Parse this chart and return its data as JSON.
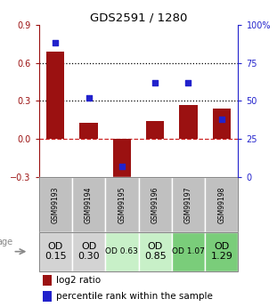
{
  "title": "GDS2591 / 1280",
  "samples": [
    "GSM99193",
    "GSM99194",
    "GSM99195",
    "GSM99196",
    "GSM99197",
    "GSM99198"
  ],
  "log2_ratio": [
    0.69,
    0.13,
    -0.35,
    0.14,
    0.27,
    0.24
  ],
  "percentile_rank": [
    88,
    52,
    7,
    62,
    62,
    38
  ],
  "bar_color": "#9b1111",
  "dot_color": "#2222cc",
  "left_ylim": [
    -0.3,
    0.9
  ],
  "right_ylim": [
    0,
    100
  ],
  "left_yticks": [
    -0.3,
    0.0,
    0.3,
    0.6,
    0.9
  ],
  "right_yticks": [
    0,
    25,
    50,
    75,
    100
  ],
  "hline_y": [
    0.3,
    0.6
  ],
  "zero_line_color": "#cc2222",
  "hline_color": "#000000",
  "age_labels": [
    "OD\n0.15",
    "OD\n0.30",
    "OD 0.63",
    "OD\n0.85",
    "OD 1.07",
    "OD\n1.29"
  ],
  "age_bg_colors": [
    "#d3d3d3",
    "#d3d3d3",
    "#c8f0c8",
    "#c8f0c8",
    "#7acd7a",
    "#7acd7a"
  ],
  "age_fontsize": [
    8,
    8,
    6.5,
    8,
    6.5,
    8
  ],
  "sample_bg_color": "#c0c0c0",
  "legend_red": "log2 ratio",
  "legend_blue": "percentile rank within the sample",
  "legend_fontsize": 7.5
}
